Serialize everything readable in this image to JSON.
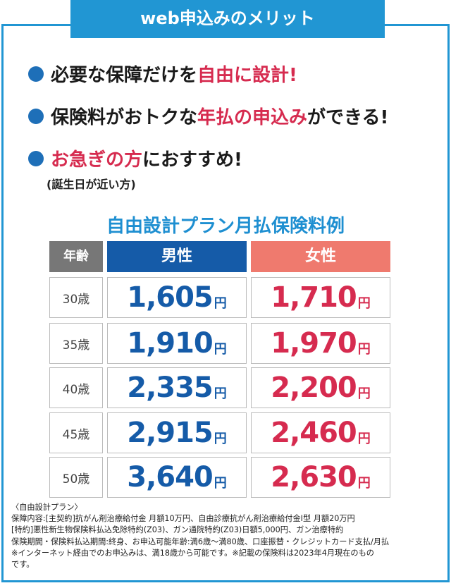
{
  "header": {
    "title": "web申込みのメリット"
  },
  "merits": [
    {
      "parts": [
        {
          "text": "必要な保障だけを",
          "highlight": false
        },
        {
          "text": "自由に設計!",
          "highlight": true
        }
      ]
    },
    {
      "parts": [
        {
          "text": "保険料がおトクな",
          "highlight": false
        },
        {
          "text": "年払の申込み",
          "highlight": true
        },
        {
          "text": "ができる!",
          "highlight": false
        }
      ]
    },
    {
      "parts": [
        {
          "text": "お急ぎの方",
          "highlight": true
        },
        {
          "text": "におすすめ!",
          "highlight": false
        }
      ]
    }
  ],
  "merit_note": "(誕生日が近い方)",
  "table": {
    "title": "自由設計プラン月払保険料例",
    "headers": {
      "age": "年齢",
      "male": "男性",
      "female": "女性"
    },
    "yen": "円",
    "rows": [
      {
        "age": "30歳",
        "male": "1,605",
        "female": "1,710"
      },
      {
        "age": "35歳",
        "male": "1,910",
        "female": "1,970"
      },
      {
        "age": "40歳",
        "male": "2,335",
        "female": "2,200"
      },
      {
        "age": "45歳",
        "male": "2,915",
        "female": "2,460"
      },
      {
        "age": "50歳",
        "male": "3,640",
        "female": "2,630"
      }
    ]
  },
  "footer": {
    "lines": [
      "〈自由設計プラン〉",
      "保障内容:[主契約]抗がん剤治療給付金 月額10万円、自由診療抗がん剤治療給付金Ⅰ型 月額20万円",
      "[特約]悪性新生物保険料払込免除特約(Z03)、ガン通院特約(Z03)日額5,000円、ガン治療特約",
      "保険期間・保険料払込期間:終身、お申込可能年齢:満6歳〜満80歳、口座振替・クレジットカード支払/月払",
      "※インターネット経由でのお申込みは、満18歳から可能です。※記載の保険料は2023年4月現在のもの",
      "です。"
    ]
  },
  "colors": {
    "accent": "#2196d3",
    "male": "#155ba8",
    "female_header": "#ef7a6e",
    "highlight": "#d62b4f"
  }
}
